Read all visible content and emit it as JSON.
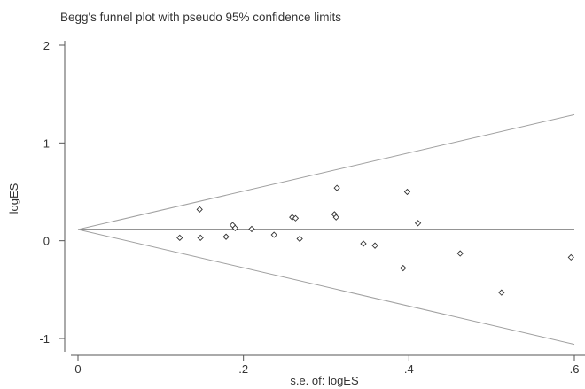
{
  "chart_data": {
    "type": "scatter",
    "title": "Begg's funnel plot with pseudo 95% confidence limits",
    "xlabel": "s.e. of: logES",
    "ylabel": "logES",
    "xlim": [
      0,
      0.6
    ],
    "ylim": [
      -1,
      2
    ],
    "x_ticks": [
      0,
      0.2,
      0.4,
      0.6
    ],
    "x_tick_labels": [
      "0",
      ".2",
      ".4",
      ".6"
    ],
    "y_ticks": [
      -1,
      0,
      1,
      2
    ],
    "y_tick_labels": [
      "-1",
      "0",
      "1",
      "2"
    ],
    "grid": false,
    "pooled_estimate": 0.115,
    "confidence_level": 1.96,
    "funnel_limit_at_max_se": {
      "se": 0.6,
      "upper": 1.29,
      "lower": -1.06
    },
    "points": [
      {
        "x": 0.123,
        "y": 0.03
      },
      {
        "x": 0.147,
        "y": 0.32
      },
      {
        "x": 0.148,
        "y": 0.03
      },
      {
        "x": 0.179,
        "y": 0.04
      },
      {
        "x": 0.187,
        "y": 0.16
      },
      {
        "x": 0.19,
        "y": 0.13
      },
      {
        "x": 0.21,
        "y": 0.12
      },
      {
        "x": 0.237,
        "y": 0.06
      },
      {
        "x": 0.259,
        "y": 0.24
      },
      {
        "x": 0.263,
        "y": 0.23
      },
      {
        "x": 0.268,
        "y": 0.02
      },
      {
        "x": 0.31,
        "y": 0.27
      },
      {
        "x": 0.312,
        "y": 0.24
      },
      {
        "x": 0.313,
        "y": 0.54
      },
      {
        "x": 0.345,
        "y": -0.03
      },
      {
        "x": 0.359,
        "y": -0.05
      },
      {
        "x": 0.393,
        "y": -0.28
      },
      {
        "x": 0.398,
        "y": 0.5
      },
      {
        "x": 0.411,
        "y": 0.18
      },
      {
        "x": 0.462,
        "y": -0.13
      },
      {
        "x": 0.512,
        "y": -0.53
      },
      {
        "x": 0.596,
        "y": -0.17
      }
    ]
  }
}
